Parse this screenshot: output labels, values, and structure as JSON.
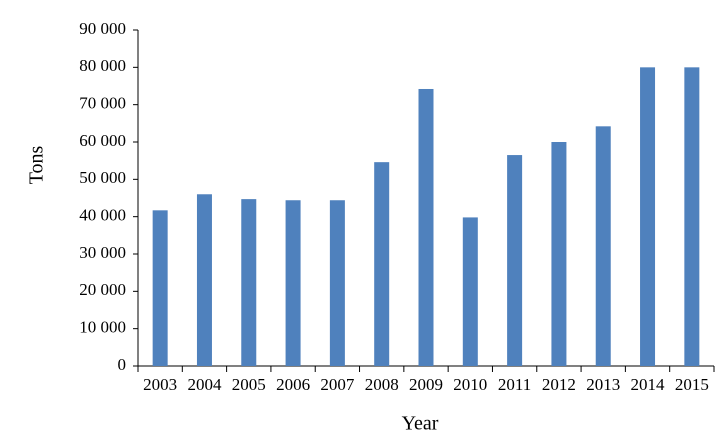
{
  "chart_data": {
    "type": "bar",
    "title": "",
    "xlabel": "Year",
    "ylabel": "Tons",
    "categories": [
      "2003",
      "2004",
      "2005",
      "2006",
      "2007",
      "2008",
      "2009",
      "2010",
      "2011",
      "2012",
      "2013",
      "2014",
      "2015"
    ],
    "values": [
      41700,
      46000,
      44700,
      44400,
      44400,
      54600,
      74200,
      39800,
      56500,
      60000,
      64200,
      80000,
      80000
    ],
    "ylim": [
      0,
      90000
    ],
    "yticks": [
      0,
      10000,
      20000,
      30000,
      40000,
      50000,
      60000,
      70000,
      80000,
      90000
    ],
    "ytick_labels": [
      "0",
      "10 000",
      "20 000",
      "30 000",
      "40 000",
      "50 000",
      "60 000",
      "70 000",
      "80 000",
      "90 000"
    ],
    "grid": false,
    "legend": "none",
    "bar_color": "#4f81bd",
    "axis_color": "#000000"
  }
}
